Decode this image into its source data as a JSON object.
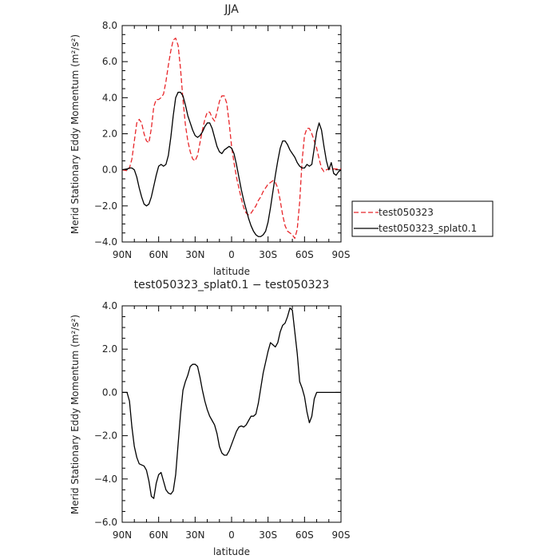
{
  "chart_data": [
    {
      "type": "line",
      "title": "JJA",
      "xlabel": "latitude",
      "ylabel": "Merid Stationary Eddy Momentum (m²/s²)",
      "xlim": [
        90,
        -90
      ],
      "ylim": [
        -4,
        8
      ],
      "x_tick_values": [
        90,
        60,
        30,
        0,
        -30,
        -60,
        -90
      ],
      "x_ticks": [
        "90N",
        "60N",
        "30N",
        "0",
        "30S",
        "60S",
        "90S"
      ],
      "y_tick_values": [
        -4,
        -2,
        0,
        2,
        4,
        6,
        8
      ],
      "y_ticks": [
        "−4.0",
        "−2.0",
        "0.0",
        "2.0",
        "4.0",
        "6.0",
        "8.0"
      ],
      "legend_position": "right",
      "colors": {
        "test050323": "#e8262a",
        "test050323_splat0.1": "#000000"
      },
      "series": [
        {
          "name": "test050323",
          "style": "dashed",
          "x": [
            90,
            86,
            84,
            82,
            80,
            78,
            76,
            74,
            72,
            70,
            68,
            66,
            64,
            62,
            60,
            58,
            56,
            54,
            52,
            50,
            48,
            46,
            44,
            42,
            40,
            38,
            36,
            34,
            32,
            30,
            28,
            26,
            24,
            22,
            20,
            18,
            16,
            14,
            12,
            10,
            8,
            6,
            4,
            2,
            0,
            -2,
            -4,
            -6,
            -8,
            -10,
            -12,
            -14,
            -16,
            -18,
            -20,
            -22,
            -24,
            -26,
            -28,
            -30,
            -32,
            -34,
            -36,
            -38,
            -40,
            -42,
            -44,
            -46,
            -48,
            -50,
            -52,
            -54,
            -56,
            -58,
            -60,
            -62,
            -64,
            -66,
            -68,
            -70,
            -72,
            -74,
            -76,
            -78,
            -80,
            -82,
            -84,
            -86,
            -88,
            -90
          ],
          "y": [
            0.0,
            -0.05,
            0.1,
            0.6,
            1.6,
            2.6,
            2.8,
            2.6,
            2.0,
            1.6,
            1.5,
            2.3,
            3.5,
            3.9,
            3.9,
            4.0,
            4.2,
            4.9,
            5.8,
            6.6,
            7.2,
            7.3,
            6.9,
            5.6,
            3.9,
            2.5,
            1.6,
            1.0,
            0.6,
            0.5,
            0.8,
            1.5,
            2.2,
            2.8,
            3.2,
            3.2,
            2.9,
            2.7,
            3.2,
            3.8,
            4.1,
            4.1,
            3.7,
            2.6,
            1.3,
            0.4,
            -0.4,
            -1.0,
            -1.6,
            -2.1,
            -2.4,
            -2.5,
            -2.4,
            -2.2,
            -2.0,
            -1.7,
            -1.5,
            -1.2,
            -1.0,
            -0.8,
            -0.7,
            -0.6,
            -0.7,
            -1.0,
            -1.7,
            -2.5,
            -3.1,
            -3.4,
            -3.5,
            -3.6,
            -3.8,
            -3.3,
            -1.8,
            0.5,
            1.9,
            2.3,
            2.3,
            2.0,
            1.6,
            1.2,
            0.6,
            0.1,
            -0.1,
            0.0,
            0.05,
            0.05,
            0.05,
            0.05,
            0.05,
            0.05
          ]
        },
        {
          "name": "test050323_splat0.1",
          "style": "solid",
          "x": [
            90,
            86,
            84,
            82,
            80,
            78,
            76,
            74,
            72,
            70,
            68,
            66,
            64,
            62,
            60,
            58,
            56,
            54,
            52,
            50,
            48,
            46,
            44,
            42,
            40,
            38,
            36,
            34,
            32,
            30,
            28,
            26,
            24,
            22,
            20,
            18,
            16,
            14,
            12,
            10,
            8,
            6,
            4,
            2,
            0,
            -2,
            -4,
            -6,
            -8,
            -10,
            -12,
            -14,
            -16,
            -18,
            -20,
            -22,
            -24,
            -26,
            -28,
            -30,
            -32,
            -34,
            -36,
            -38,
            -40,
            -42,
            -44,
            -46,
            -48,
            -50,
            -52,
            -54,
            -56,
            -58,
            -60,
            -62,
            -64,
            -66,
            -68,
            -70,
            -72,
            -74,
            -76,
            -78,
            -80,
            -82,
            -84,
            -86,
            -88,
            -90
          ],
          "y": [
            0.0,
            0.05,
            0.1,
            0.1,
            0.0,
            -0.4,
            -1.0,
            -1.5,
            -1.9,
            -2.0,
            -1.9,
            -1.5,
            -0.9,
            -0.3,
            0.2,
            0.3,
            0.2,
            0.3,
            0.8,
            1.8,
            3.0,
            4.0,
            4.3,
            4.3,
            4.1,
            3.6,
            3.0,
            2.6,
            2.2,
            1.9,
            1.8,
            1.9,
            2.1,
            2.4,
            2.6,
            2.6,
            2.3,
            1.8,
            1.3,
            1.0,
            0.9,
            1.1,
            1.2,
            1.3,
            1.2,
            0.9,
            0.3,
            -0.4,
            -1.1,
            -1.7,
            -2.2,
            -2.7,
            -3.1,
            -3.4,
            -3.6,
            -3.7,
            -3.7,
            -3.6,
            -3.4,
            -2.9,
            -2.1,
            -1.2,
            -0.3,
            0.5,
            1.2,
            1.6,
            1.6,
            1.4,
            1.1,
            0.9,
            0.7,
            0.4,
            0.2,
            0.1,
            0.1,
            0.3,
            0.2,
            0.3,
            1.2,
            2.1,
            2.6,
            2.2,
            1.3,
            0.5,
            0.0,
            0.4,
            -0.2,
            -0.3,
            -0.1,
            0.0
          ]
        }
      ]
    },
    {
      "type": "line",
      "title": "test050323_splat0.1 − test050323",
      "xlabel": "latitude",
      "ylabel": "Merid Stationary Eddy Momentum (m²/s²)",
      "xlim": [
        90,
        -90
      ],
      "ylim": [
        -6,
        4
      ],
      "x_tick_values": [
        90,
        60,
        30,
        0,
        -30,
        -60,
        -90
      ],
      "x_ticks": [
        "90N",
        "60N",
        "30N",
        "0",
        "30S",
        "60S",
        "90S"
      ],
      "y_tick_values": [
        -6,
        -4,
        -2,
        0,
        2,
        4
      ],
      "y_ticks": [
        "−6.0",
        "−4.0",
        "−2.0",
        "0.0",
        "2.0",
        "4.0"
      ],
      "series": [
        {
          "x": [
            90,
            86,
            84,
            82,
            80,
            78,
            76,
            74,
            72,
            70,
            68,
            66,
            64,
            62,
            60,
            58,
            56,
            54,
            52,
            50,
            48,
            46,
            44,
            42,
            40,
            38,
            36,
            34,
            32,
            30,
            28,
            26,
            24,
            22,
            20,
            18,
            16,
            14,
            12,
            10,
            8,
            6,
            4,
            2,
            0,
            -2,
            -4,
            -6,
            -8,
            -10,
            -12,
            -14,
            -16,
            -18,
            -20,
            -22,
            -24,
            -26,
            -28,
            -30,
            -32,
            -34,
            -36,
            -38,
            -40,
            -42,
            -44,
            -46,
            -48,
            -50,
            -52,
            -54,
            -56,
            -58,
            -60,
            -62,
            -64,
            -66,
            -68,
            -70,
            -72,
            -74,
            -76,
            -78,
            -80,
            -82,
            -84,
            -86,
            -88,
            -90
          ],
          "y": [
            0.0,
            0.0,
            -0.4,
            -1.6,
            -2.5,
            -3.0,
            -3.3,
            -3.35,
            -3.4,
            -3.6,
            -4.1,
            -4.8,
            -4.9,
            -4.2,
            -3.8,
            -3.7,
            -4.1,
            -4.5,
            -4.65,
            -4.7,
            -4.55,
            -3.8,
            -2.4,
            -1.0,
            0.1,
            0.5,
            0.8,
            1.2,
            1.3,
            1.3,
            1.2,
            0.7,
            0.1,
            -0.4,
            -0.8,
            -1.1,
            -1.3,
            -1.5,
            -1.9,
            -2.5,
            -2.8,
            -2.9,
            -2.9,
            -2.7,
            -2.4,
            -2.1,
            -1.8,
            -1.6,
            -1.55,
            -1.6,
            -1.5,
            -1.3,
            -1.1,
            -1.1,
            -1.0,
            -0.5,
            0.2,
            0.9,
            1.4,
            1.9,
            2.3,
            2.2,
            2.1,
            2.3,
            2.8,
            3.1,
            3.2,
            3.5,
            3.9,
            3.8,
            2.8,
            1.8,
            0.5,
            0.2,
            -0.2,
            -0.9,
            -1.4,
            -1.1,
            -0.3,
            0.0,
            0.0,
            0.0,
            0.0,
            0.0,
            0.0,
            0.0,
            0.0,
            0.0,
            0.0,
            0.0
          ]
        }
      ]
    }
  ]
}
